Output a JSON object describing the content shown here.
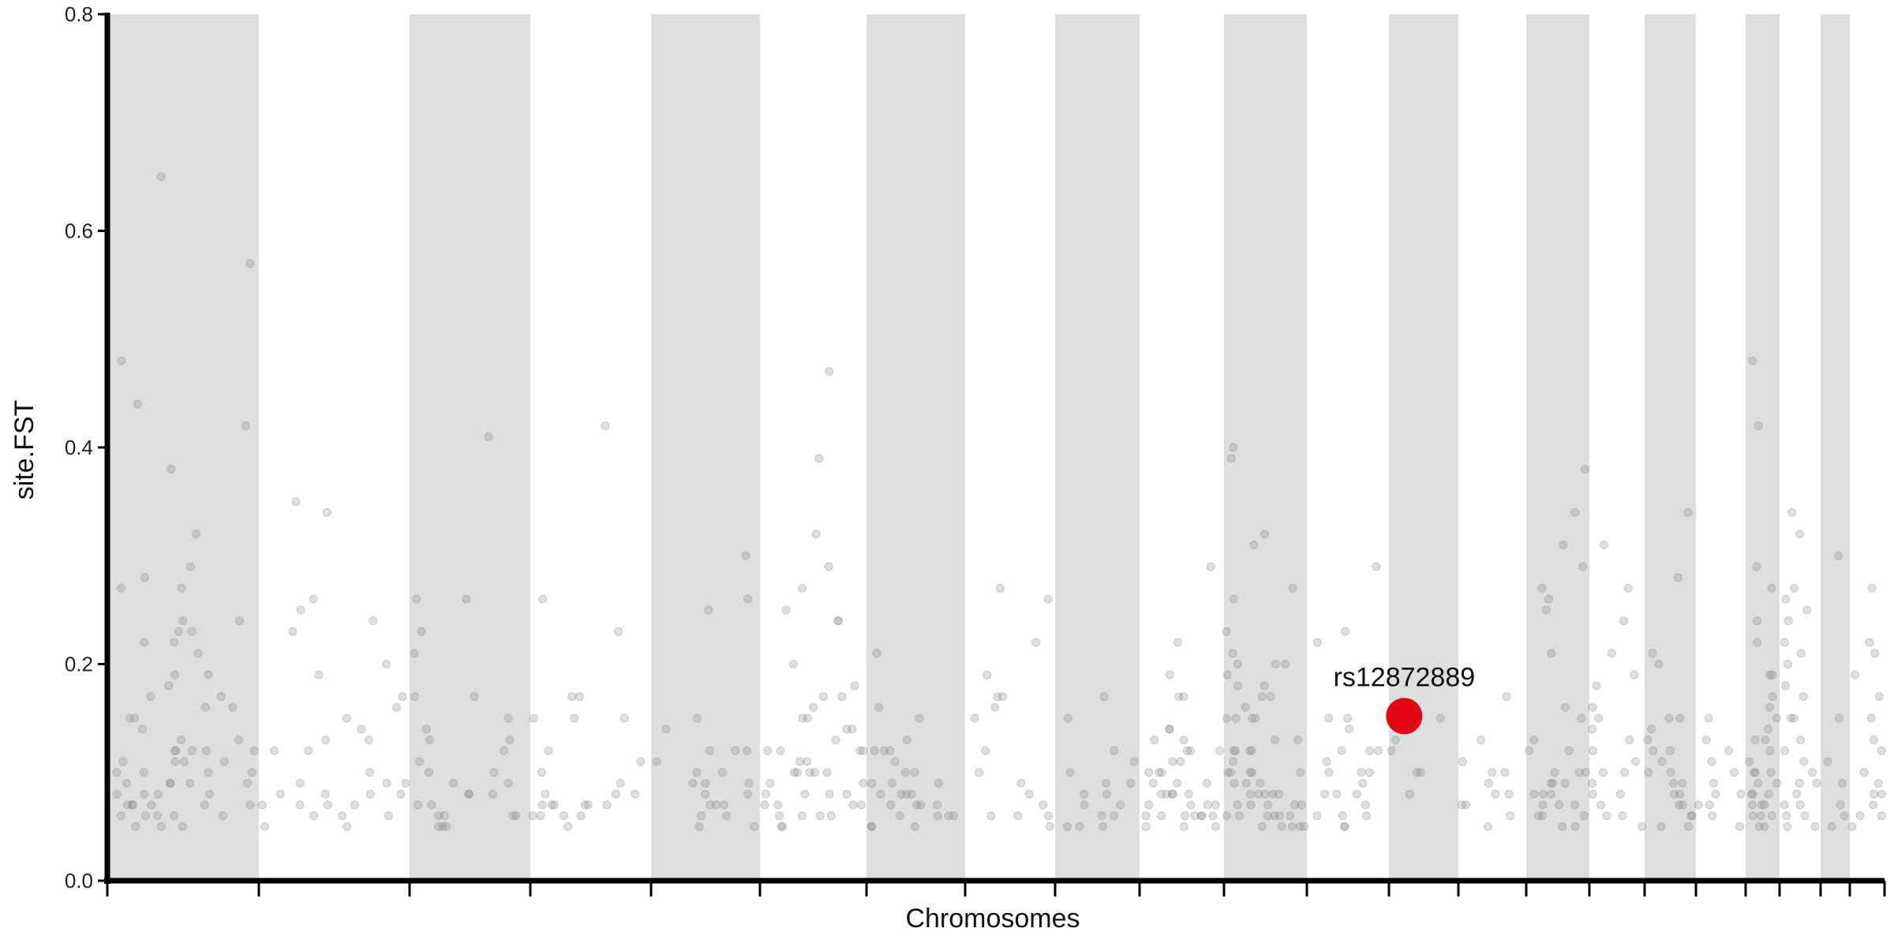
{
  "chart_data": {
    "type": "scatter",
    "title": "",
    "xlabel": "Chromosomes",
    "ylabel": "site.FST",
    "ylim": [
      0,
      0.8
    ],
    "y_ticks": [
      0.0,
      0.2,
      0.4,
      0.6,
      0.8
    ],
    "y_tick_labels": [
      "0.0",
      "0.2",
      "0.4",
      "0.6",
      "0.8"
    ],
    "grid": false,
    "legend": "none",
    "chromosome_count": 22,
    "band_color": "#dedede",
    "point_color": "#808080",
    "highlight_color": "#e30613",
    "highlight": {
      "label": "rs12872889",
      "chromosome": 13,
      "y": 0.152
    },
    "chromosomes": [
      {
        "chrom": 1,
        "shaded": true,
        "y": [
          0.27,
          0.12,
          0.09,
          0.06,
          0.19,
          0.11,
          0.27,
          0.13,
          0.32,
          0.09,
          0.07,
          0.11,
          0.12,
          0.06,
          0.24,
          0.08,
          0.1,
          0.07,
          0.23,
          0.13,
          0.05,
          0.08,
          0.09,
          0.1,
          0.07,
          0.12,
          0.57,
          0.44,
          0.38,
          0.29,
          0.19,
          0.17,
          0.15,
          0.12,
          0.11,
          0.1,
          0.09,
          0.08,
          0.07,
          0.06,
          0.05,
          0.65,
          0.48,
          0.42,
          0.28,
          0.24,
          0.23,
          0.22,
          0.21,
          0.18,
          0.17,
          0.16,
          0.15,
          0.14,
          0.12,
          0.11,
          0.1,
          0.09,
          0.08,
          0.07,
          0.07,
          0.06,
          0.06,
          0.05,
          0.22,
          0.16
        ]
      },
      {
        "chrom": 2,
        "shaded": false,
        "y": [
          0.34,
          0.08,
          0.07,
          0.35,
          0.1,
          0.08,
          0.25,
          0.24,
          0.2,
          0.17,
          0.16,
          0.09,
          0.08,
          0.07,
          0.06,
          0.05,
          0.12,
          0.26,
          0.23,
          0.19,
          0.14,
          0.13,
          0.09,
          0.08,
          0.07,
          0.06,
          0.15,
          0.13,
          0.12,
          0.09,
          0.07,
          0.06,
          0.05
        ]
      },
      {
        "chrom": 3,
        "shaded": true,
        "y": [
          0.26,
          0.14,
          0.12,
          0.06,
          0.05,
          0.17,
          0.13,
          0.1,
          0.08,
          0.41,
          0.06,
          0.05,
          0.09,
          0.07,
          0.26,
          0.23,
          0.21,
          0.17,
          0.15,
          0.13,
          0.1,
          0.08,
          0.07,
          0.06,
          0.08,
          0.11,
          0.09,
          0.06,
          0.05
        ]
      },
      {
        "chrom": 4,
        "shaded": false,
        "y": [
          0.15,
          0.12,
          0.07,
          0.06,
          0.42,
          0.26,
          0.17,
          0.08,
          0.07,
          0.06,
          0.15,
          0.09,
          0.07,
          0.23,
          0.17,
          0.11,
          0.08,
          0.07,
          0.06,
          0.15,
          0.1,
          0.08,
          0.07,
          0.06,
          0.07,
          0.05
        ]
      },
      {
        "chrom": 5,
        "shaded": true,
        "y": [
          0.11,
          0.07,
          0.05,
          0.09,
          0.12,
          0.26,
          0.25,
          0.15,
          0.14,
          0.12,
          0.1,
          0.09,
          0.08,
          0.07,
          0.06,
          0.05,
          0.3,
          0.1,
          0.08,
          0.06,
          0.12,
          0.09,
          0.07
        ]
      },
      {
        "chrom": 6,
        "shaded": false,
        "y": [
          0.12,
          0.1,
          0.08,
          0.11,
          0.09,
          0.07,
          0.39,
          0.29,
          0.27,
          0.24,
          0.17,
          0.16,
          0.15,
          0.14,
          0.13,
          0.12,
          0.11,
          0.1,
          0.09,
          0.08,
          0.07,
          0.06,
          0.06,
          0.05,
          0.32,
          0.1,
          0.07,
          0.12,
          0.1,
          0.08,
          0.06,
          0.05,
          0.47,
          0.25,
          0.24,
          0.2,
          0.18,
          0.17,
          0.15,
          0.14,
          0.12,
          0.1,
          0.08,
          0.07,
          0.06
        ]
      },
      {
        "chrom": 7,
        "shaded": true,
        "y": [
          0.21,
          0.12,
          0.1,
          0.09,
          0.08,
          0.07,
          0.06,
          0.05,
          0.12,
          0.09,
          0.08,
          0.07,
          0.06,
          0.16,
          0.13,
          0.12,
          0.1,
          0.09,
          0.08,
          0.07,
          0.06,
          0.05,
          0.15,
          0.11,
          0.08,
          0.07,
          0.06,
          0.05
        ]
      },
      {
        "chrom": 8,
        "shaded": false,
        "y": [
          0.19,
          0.09,
          0.07,
          0.06,
          0.27,
          0.26,
          0.22,
          0.17,
          0.15,
          0.12,
          0.1,
          0.08,
          0.06,
          0.05,
          0.06,
          0.17,
          0.16
        ]
      },
      {
        "chrom": 9,
        "shaded": true,
        "y": [
          0.1,
          0.09,
          0.08,
          0.07,
          0.06,
          0.05,
          0.17,
          0.15,
          0.12,
          0.11,
          0.09,
          0.08,
          0.07,
          0.06,
          0.05,
          0.05
        ]
      },
      {
        "chrom": 10,
        "shaded": false,
        "y": [
          0.08,
          0.07,
          0.06,
          0.05,
          0.13,
          0.12,
          0.11,
          0.1,
          0.09,
          0.08,
          0.07,
          0.06,
          0.05,
          0.22,
          0.29,
          0.09,
          0.07,
          0.06,
          0.14,
          0.1,
          0.08,
          0.06,
          0.19,
          0.14,
          0.12,
          0.09,
          0.07,
          0.06,
          0.05,
          0.17,
          0.13,
          0.11,
          0.08,
          0.06,
          0.17,
          0.12,
          0.1,
          0.08,
          0.06
        ]
      },
      {
        "chrom": 11,
        "shaded": true,
        "y": [
          0.32,
          0.26,
          0.23,
          0.18,
          0.17,
          0.15,
          0.13,
          0.12,
          0.11,
          0.1,
          0.09,
          0.08,
          0.07,
          0.07,
          0.06,
          0.06,
          0.05,
          0.05,
          0.27,
          0.2,
          0.17,
          0.13,
          0.1,
          0.08,
          0.06,
          0.39,
          0.2,
          0.15,
          0.12,
          0.1,
          0.08,
          0.07,
          0.06,
          0.05,
          0.19,
          0.16,
          0.15,
          0.12,
          0.1,
          0.09,
          0.08,
          0.07,
          0.06,
          0.05,
          0.4,
          0.31,
          0.21,
          0.2,
          0.18,
          0.15,
          0.12,
          0.1,
          0.09,
          0.08,
          0.07,
          0.06,
          0.05
        ]
      },
      {
        "chrom": 12,
        "shaded": false,
        "y": [
          0.14,
          0.12,
          0.1,
          0.08,
          0.06,
          0.23,
          0.15,
          0.12,
          0.1,
          0.08,
          0.06,
          0.05,
          0.29,
          0.22,
          0.15,
          0.12,
          0.11,
          0.1,
          0.09,
          0.08,
          0.07,
          0.06,
          0.05
        ]
      },
      {
        "chrom": 13,
        "shaded": true,
        "y": [
          0.15,
          0.13,
          0.1,
          0.08,
          0.12,
          0.1
        ]
      },
      {
        "chrom": 14,
        "shaded": false,
        "y": [
          0.17,
          0.13,
          0.11,
          0.1,
          0.09,
          0.08,
          0.07,
          0.06,
          0.05,
          0.1,
          0.08,
          0.07
        ]
      },
      {
        "chrom": 15,
        "shaded": true,
        "y": [
          0.38,
          0.34,
          0.29,
          0.27,
          0.25,
          0.21,
          0.15,
          0.12,
          0.1,
          0.09,
          0.08,
          0.07,
          0.06,
          0.05,
          0.05,
          0.31,
          0.26,
          0.16,
          0.13,
          0.1,
          0.09,
          0.08,
          0.07,
          0.06,
          0.12,
          0.1,
          0.09,
          0.08,
          0.07,
          0.06
        ]
      },
      {
        "chrom": 16,
        "shaded": false,
        "y": [
          0.31,
          0.27,
          0.24,
          0.21,
          0.19,
          0.18,
          0.15,
          0.14,
          0.13,
          0.11,
          0.1,
          0.09,
          0.08,
          0.07,
          0.06,
          0.05,
          0.16,
          0.12,
          0.1,
          0.08,
          0.06
        ]
      },
      {
        "chrom": 17,
        "shaded": true,
        "y": [
          0.21,
          0.2,
          0.15,
          0.14,
          0.12,
          0.1,
          0.09,
          0.08,
          0.07,
          0.06,
          0.05,
          0.34,
          0.28,
          0.15,
          0.13,
          0.12,
          0.11,
          0.1,
          0.09,
          0.08,
          0.07,
          0.06,
          0.05
        ]
      },
      {
        "chrom": 18,
        "shaded": false,
        "y": [
          0.15,
          0.13,
          0.12,
          0.11,
          0.1,
          0.09,
          0.08,
          0.07,
          0.06,
          0.05,
          0.08,
          0.07
        ]
      },
      {
        "chrom": 19,
        "shaded": true,
        "y": [
          0.24,
          0.22,
          0.19,
          0.15,
          0.12,
          0.1,
          0.09,
          0.08,
          0.07,
          0.06,
          0.05,
          0.29,
          0.27,
          0.19,
          0.17,
          0.16,
          0.14,
          0.13,
          0.11,
          0.1,
          0.09,
          0.08,
          0.07,
          0.06,
          0.05,
          0.48,
          0.42,
          0.13,
          0.1,
          0.08,
          0.07,
          0.06
        ]
      },
      {
        "chrom": 20,
        "shaded": false,
        "y": [
          0.34,
          0.32,
          0.27,
          0.26,
          0.25,
          0.24,
          0.22,
          0.2,
          0.18,
          0.17,
          0.15,
          0.13,
          0.12,
          0.11,
          0.1,
          0.09,
          0.08,
          0.07,
          0.06,
          0.05,
          0.05,
          0.21,
          0.15,
          0.09,
          0.07,
          0.06
        ]
      },
      {
        "chrom": 21,
        "shaded": true,
        "y": [
          0.3,
          0.15,
          0.11,
          0.09,
          0.07,
          0.06,
          0.05
        ]
      },
      {
        "chrom": 22,
        "shaded": false,
        "y": [
          0.27,
          0.22,
          0.21,
          0.17,
          0.13,
          0.1,
          0.09,
          0.08,
          0.07,
          0.06,
          0.05,
          0.19,
          0.15,
          0.12,
          0.08,
          0.06
        ]
      }
    ]
  }
}
